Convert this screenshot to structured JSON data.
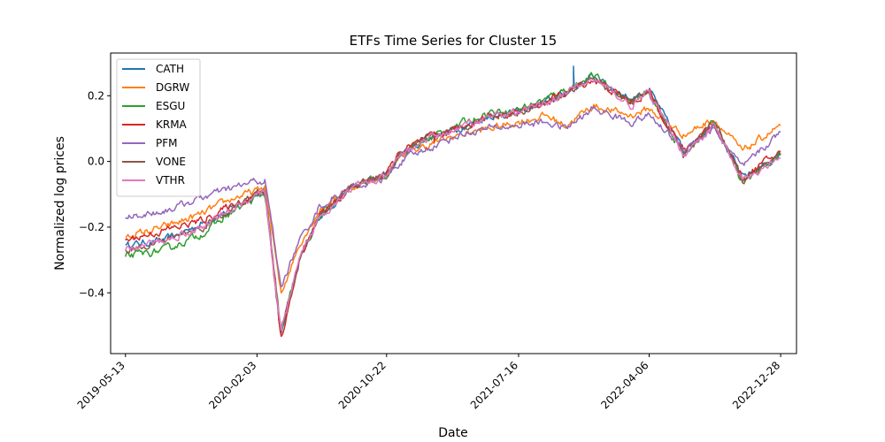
{
  "chart_data": {
    "type": "line",
    "title": "ETFs Time Series for Cluster 15",
    "xlabel": "Date",
    "ylabel": "Normalized log prices",
    "x_tick_labels": [
      "2019-05-13",
      "2020-02-03",
      "2020-10-22",
      "2021-07-16",
      "2022-04-06",
      "2022-12-28"
    ],
    "y_ticks": [
      -0.4,
      -0.2,
      0.0,
      0.2
    ],
    "y_tick_labels": [
      "−0.4",
      "−0.2",
      "0.0",
      "0.2"
    ],
    "xlim": [
      "2019-04-13",
      "2023-01-29"
    ],
    "ylim": [
      -0.585,
      0.33
    ],
    "legend_position": "upper-left",
    "grid": false,
    "x": [
      "2019-05-13",
      "2019-08-01",
      "2019-10-15",
      "2019-12-20",
      "2020-02-03",
      "2020-02-20",
      "2020-03-23",
      "2020-04-30",
      "2020-06-08",
      "2020-08-10",
      "2020-10-22",
      "2020-11-20",
      "2021-01-15",
      "2021-03-15",
      "2021-05-20",
      "2021-07-16",
      "2021-09-10",
      "2021-10-20",
      "2021-12-15",
      "2022-01-05",
      "2022-03-01",
      "2022-04-06",
      "2022-06-16",
      "2022-08-15",
      "2022-10-12",
      "2022-12-28"
    ],
    "series": [
      {
        "name": "CATH",
        "color": "#1f77b4",
        "values": [
          -0.255,
          -0.24,
          -0.19,
          -0.14,
          -0.1,
          -0.09,
          -0.53,
          -0.3,
          -0.17,
          -0.08,
          -0.04,
          0.02,
          0.07,
          0.1,
          0.14,
          0.15,
          0.18,
          0.21,
          0.26,
          0.24,
          0.19,
          0.22,
          0.03,
          0.12,
          -0.05,
          0.02
        ]
      },
      {
        "name": "DGRW",
        "color": "#ff7f0e",
        "values": [
          -0.23,
          -0.2,
          -0.16,
          -0.11,
          -0.09,
          -0.08,
          -0.4,
          -0.25,
          -0.15,
          -0.08,
          -0.04,
          0.02,
          0.05,
          0.08,
          0.1,
          0.12,
          0.14,
          0.11,
          0.17,
          0.16,
          0.14,
          0.16,
          0.08,
          0.13,
          0.03,
          0.11
        ]
      },
      {
        "name": "ESGU",
        "color": "#2ca02c",
        "values": [
          -0.29,
          -0.27,
          -0.22,
          -0.15,
          -0.11,
          -0.1,
          -0.52,
          -0.3,
          -0.17,
          -0.08,
          -0.04,
          0.02,
          0.07,
          0.11,
          0.15,
          0.16,
          0.19,
          0.22,
          0.26,
          0.24,
          0.18,
          0.21,
          0.02,
          0.12,
          -0.06,
          0.02
        ]
      },
      {
        "name": "KRMA",
        "color": "#d62728",
        "values": [
          -0.24,
          -0.21,
          -0.18,
          -0.13,
          -0.1,
          -0.09,
          -0.54,
          -0.3,
          -0.17,
          -0.08,
          -0.04,
          0.03,
          0.07,
          0.1,
          0.14,
          0.15,
          0.18,
          0.21,
          0.25,
          0.23,
          0.18,
          0.21,
          0.03,
          0.12,
          -0.05,
          0.03
        ]
      },
      {
        "name": "PFM",
        "color": "#9467bd",
        "values": [
          -0.17,
          -0.15,
          -0.11,
          -0.08,
          -0.06,
          -0.06,
          -0.38,
          -0.24,
          -0.14,
          -0.08,
          -0.05,
          0.0,
          0.04,
          0.08,
          0.1,
          0.11,
          0.12,
          0.1,
          0.16,
          0.15,
          0.12,
          0.14,
          0.04,
          0.1,
          -0.02,
          0.09
        ]
      },
      {
        "name": "VONE",
        "color": "#8c564b",
        "values": [
          -0.27,
          -0.24,
          -0.2,
          -0.14,
          -0.1,
          -0.09,
          -0.52,
          -0.3,
          -0.17,
          -0.08,
          -0.04,
          0.02,
          0.07,
          0.1,
          0.14,
          0.15,
          0.18,
          0.21,
          0.25,
          0.23,
          0.18,
          0.21,
          0.02,
          0.12,
          -0.06,
          0.02
        ]
      },
      {
        "name": "VTHR",
        "color": "#e377c2",
        "values": [
          -0.27,
          -0.24,
          -0.2,
          -0.14,
          -0.1,
          -0.1,
          -0.52,
          -0.3,
          -0.17,
          -0.08,
          -0.05,
          0.02,
          0.07,
          0.1,
          0.14,
          0.15,
          0.18,
          0.21,
          0.25,
          0.23,
          0.17,
          0.21,
          0.02,
          0.11,
          -0.06,
          0.01
        ]
      }
    ],
    "annotations": [
      {
        "series": "CATH",
        "type": "spike",
        "x": "2021-11-04",
        "value": 0.29
      },
      {
        "series": "KRMA",
        "type": "spike",
        "x": "2021-01-26",
        "value": 0.06
      }
    ]
  }
}
